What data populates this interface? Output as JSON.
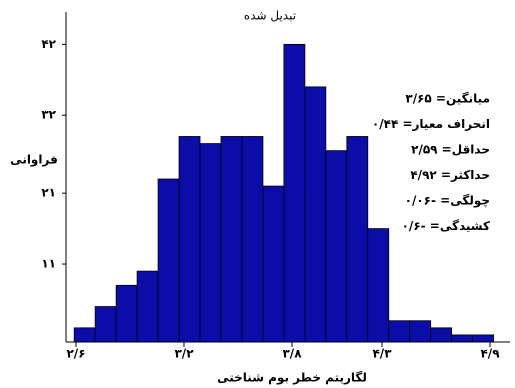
{
  "chart_data": {
    "type": "histogram",
    "title": "تبدیل شده",
    "x_label": "لگاریتم خطر بوم شناختی",
    "y_label": "فراوانی",
    "bins": [
      2.59,
      2.7065,
      2.823,
      2.9395,
      3.056,
      3.1725,
      3.289,
      3.4055,
      3.522,
      3.6385,
      3.755,
      3.8715,
      3.988,
      4.1045,
      4.221,
      4.3375,
      4.454,
      4.5705,
      4.687,
      4.8035,
      4.92
    ],
    "values": [
      2,
      5,
      8,
      10,
      23,
      29,
      28,
      29,
      29,
      22,
      42,
      36,
      27,
      29,
      16,
      3,
      3,
      2,
      1,
      1
    ],
    "color": "#0c0ca8",
    "xlim": [
      2.6,
      4.95
    ],
    "ylim": [
      0,
      46
    ],
    "xticks": [
      {
        "value": 2.6,
        "label": "۲/۶"
      },
      {
        "value": 3.2,
        "label": "۳/۲"
      },
      {
        "value": 3.8,
        "label": "۳/۸"
      },
      {
        "value": 4.3,
        "label": "۴/۳"
      },
      {
        "value": 4.9,
        "label": "۴/۹"
      }
    ],
    "yticks": [
      {
        "value": 11,
        "label": "۱۱"
      },
      {
        "value": 21,
        "label": "۲۱"
      },
      {
        "value": 32,
        "label": "۳۲"
      },
      {
        "value": 42,
        "label": "۴۲"
      }
    ],
    "annotations": [
      "میانگین= ۳/۶۵",
      "انحراف معیار= ۰/۴۴",
      "حداقل= ۲/۵۹",
      "حداکثر= ۴/۹۲",
      "چولگی= -۰/۰۶",
      "کشیدگی= -۰/۶"
    ]
  }
}
